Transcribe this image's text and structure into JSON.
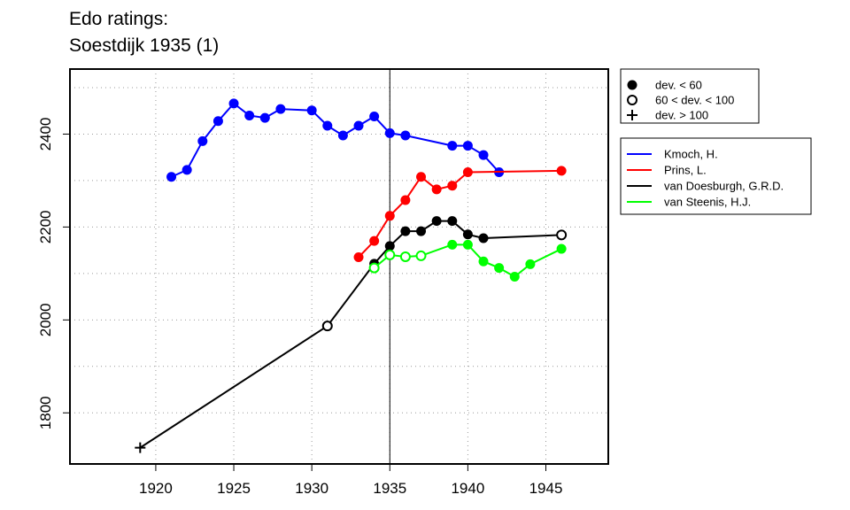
{
  "chart_data": {
    "type": "line",
    "title": [
      "Edo ratings:",
      "Soestdijk 1935 (1)"
    ],
    "xlabel": "",
    "ylabel": "",
    "xlim": [
      1914.5,
      1949
    ],
    "ylim": [
      1690,
      2540
    ],
    "x_ticks": [
      1920,
      1925,
      1930,
      1935,
      1940,
      1945
    ],
    "y_ticks": [
      1800,
      2000,
      2200,
      2400
    ],
    "grid": true,
    "grid_dotted_y": [
      1800,
      1900,
      2000,
      2100,
      2200,
      2300,
      2400,
      2500
    ],
    "grid_dotted_x": [
      1920,
      1925,
      1930,
      1935,
      1940,
      1945
    ],
    "vline": 1935,
    "marker_legend": {
      "position": "top-right",
      "entries": [
        {
          "marker": "filled",
          "label": "dev. < 60"
        },
        {
          "marker": "open",
          "label": "60 < dev. < 100"
        },
        {
          "marker": "plus",
          "label": "dev. > 100"
        }
      ]
    },
    "series_legend_position": "right",
    "series": [
      {
        "name": "Kmoch, H.",
        "color": "#0000ff",
        "points": [
          {
            "x": 1921,
            "y": 2308,
            "m": "filled"
          },
          {
            "x": 1922,
            "y": 2323,
            "m": "filled"
          },
          {
            "x": 1923,
            "y": 2385,
            "m": "filled"
          },
          {
            "x": 1924,
            "y": 2428,
            "m": "filled"
          },
          {
            "x": 1925,
            "y": 2466,
            "m": "filled"
          },
          {
            "x": 1926,
            "y": 2440,
            "m": "filled"
          },
          {
            "x": 1927,
            "y": 2435,
            "m": "filled"
          },
          {
            "x": 1928,
            "y": 2454,
            "m": "filled"
          },
          {
            "x": 1930,
            "y": 2451,
            "m": "filled"
          },
          {
            "x": 1931,
            "y": 2418,
            "m": "filled"
          },
          {
            "x": 1932,
            "y": 2397,
            "m": "filled"
          },
          {
            "x": 1933,
            "y": 2418,
            "m": "filled"
          },
          {
            "x": 1934,
            "y": 2438,
            "m": "filled"
          },
          {
            "x": 1935,
            "y": 2402,
            "m": "filled"
          },
          {
            "x": 1936,
            "y": 2397,
            "m": "filled"
          },
          {
            "x": 1939,
            "y": 2375,
            "m": "filled"
          },
          {
            "x": 1940,
            "y": 2375,
            "m": "filled"
          },
          {
            "x": 1941,
            "y": 2355,
            "m": "filled"
          },
          {
            "x": 1942,
            "y": 2318,
            "m": "filled"
          }
        ]
      },
      {
        "name": "Prins, L.",
        "color": "#ff0000",
        "points": [
          {
            "x": 1933,
            "y": 2135,
            "m": "filled"
          },
          {
            "x": 1934,
            "y": 2170,
            "m": "filled"
          },
          {
            "x": 1935,
            "y": 2224,
            "m": "filled"
          },
          {
            "x": 1936,
            "y": 2258,
            "m": "filled"
          },
          {
            "x": 1937,
            "y": 2308,
            "m": "filled"
          },
          {
            "x": 1938,
            "y": 2281,
            "m": "filled"
          },
          {
            "x": 1939,
            "y": 2289,
            "m": "filled"
          },
          {
            "x": 1940,
            "y": 2318,
            "m": "filled"
          },
          {
            "x": 1946,
            "y": 2321,
            "m": "filled"
          }
        ]
      },
      {
        "name": "van Doesburgh, G.R.D.",
        "color": "#000000",
        "points": [
          {
            "x": 1919,
            "y": 1725,
            "m": "plus"
          },
          {
            "x": 1931,
            "y": 1987,
            "m": "open"
          },
          {
            "x": 1934,
            "y": 2121,
            "m": "filled"
          },
          {
            "x": 1935,
            "y": 2159,
            "m": "filled"
          },
          {
            "x": 1936,
            "y": 2191,
            "m": "filled"
          },
          {
            "x": 1937,
            "y": 2191,
            "m": "filled"
          },
          {
            "x": 1938,
            "y": 2213,
            "m": "filled"
          },
          {
            "x": 1939,
            "y": 2213,
            "m": "filled"
          },
          {
            "x": 1940,
            "y": 2184,
            "m": "filled"
          },
          {
            "x": 1941,
            "y": 2176,
            "m": "filled"
          },
          {
            "x": 1946,
            "y": 2183,
            "m": "open"
          }
        ]
      },
      {
        "name": "van Steenis, H.J.",
        "color": "#00ff00",
        "points": [
          {
            "x": 1934,
            "y": 2112,
            "m": "open"
          },
          {
            "x": 1935,
            "y": 2140,
            "m": "open"
          },
          {
            "x": 1936,
            "y": 2136,
            "m": "open"
          },
          {
            "x": 1937,
            "y": 2138,
            "m": "open"
          },
          {
            "x": 1939,
            "y": 2162,
            "m": "filled"
          },
          {
            "x": 1940,
            "y": 2162,
            "m": "filled"
          },
          {
            "x": 1941,
            "y": 2126,
            "m": "filled"
          },
          {
            "x": 1942,
            "y": 2112,
            "m": "filled"
          },
          {
            "x": 1943,
            "y": 2093,
            "m": "filled"
          },
          {
            "x": 1944,
            "y": 2120,
            "m": "filled"
          },
          {
            "x": 1946,
            "y": 2153,
            "m": "filled"
          }
        ]
      }
    ]
  }
}
